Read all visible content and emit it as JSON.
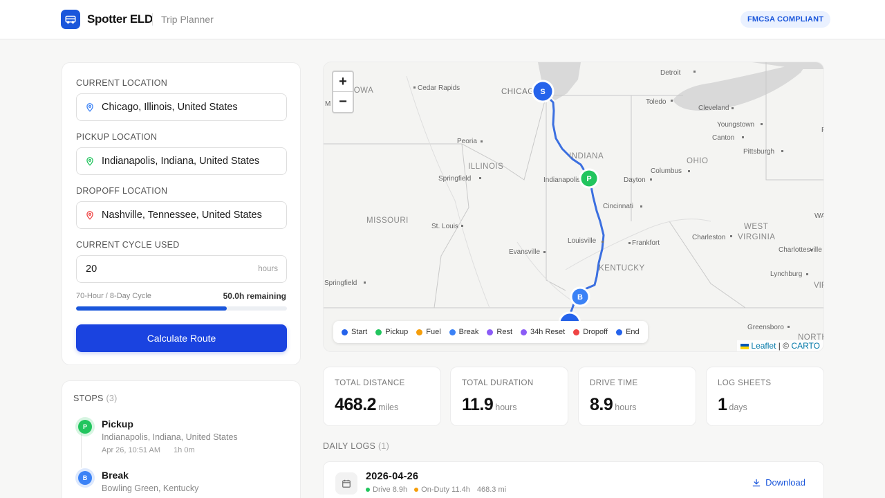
{
  "header": {
    "brand": "Spotter ELD",
    "subtitle": "Trip Planner",
    "badge": "FMCSA COMPLIANT"
  },
  "form": {
    "current_location": {
      "label": "CURRENT LOCATION",
      "value": "Chicago, Illinois, United States"
    },
    "pickup_location": {
      "label": "PICKUP LOCATION",
      "value": "Indianapolis, Indiana, United States"
    },
    "dropoff_location": {
      "label": "DROPOFF LOCATION",
      "value": "Nashville, Tennessee, United States"
    },
    "cycle_used": {
      "label": "CURRENT CYCLE USED",
      "value": "20",
      "unit": "hours"
    },
    "cycle_caption": "70-Hour / 8-Day Cycle",
    "cycle_remaining": "50.0h remaining",
    "cycle_fraction": 0.714,
    "calculate_label": "Calculate Route"
  },
  "stops": {
    "title": "STOPS",
    "count": "(3)",
    "items": [
      {
        "letter": "P",
        "name": "Pickup",
        "address": "Indianapolis, Indiana, United States",
        "time": "Apr 26, 10:51 AM",
        "duration": "1h 0m",
        "color": "#22c55e"
      },
      {
        "letter": "B",
        "name": "Break",
        "address": "Bowling Green, Kentucky",
        "color": "#3b82f6"
      }
    ]
  },
  "map": {
    "zoom_in": "+",
    "zoom_out": "−",
    "labels": {
      "iowa": "IOWA",
      "cedar_rapids": "Cedar Rapids",
      "chicago": "CHICAGO",
      "detroit": "Detroit",
      "toledo": "Toledo",
      "cleveland": "Cleveland",
      "youngstown": "Youngstown",
      "canton": "Canton",
      "pittsburgh": "Pittsburgh",
      "indiana": "INDIANA",
      "ohio": "OHIO",
      "peoria": "Peoria",
      "illinois": "ILLINOIS",
      "springfield_il": "Springfield",
      "indianapolis": "Indianapolis",
      "dayton": "Dayton",
      "columbus": "Columbus",
      "cincinnati": "Cincinnati",
      "missouri": "MISSOURI",
      "st_louis": "St. Louis",
      "louisville": "Louisville",
      "frankfort": "Frankfort",
      "west_virginia_1": "WEST",
      "west_virginia_2": "VIRGINIA",
      "charleston": "Charleston",
      "charlottesville": "Charlottesville",
      "evansville": "Evansville",
      "kentucky": "KENTUCKY",
      "lynchburg": "Lynchburg",
      "springfield_mo": "Springfield",
      "greensboro": "Greensboro",
      "north": "NORTH",
      "edge_m": "M",
      "edge_p": "P",
      "edge_wa": "WA",
      "edge_vir": "VIR"
    },
    "markers": {
      "start": "S",
      "pickup": "P",
      "break": "B"
    },
    "legend": [
      {
        "label": "Start",
        "color": "#2563eb"
      },
      {
        "label": "Pickup",
        "color": "#22c55e"
      },
      {
        "label": "Fuel",
        "color": "#f59e0b"
      },
      {
        "label": "Break",
        "color": "#3b82f6"
      },
      {
        "label": "Rest",
        "color": "#8b5cf6"
      },
      {
        "label": "34h Reset",
        "color": "#8b5cf6"
      },
      {
        "label": "Dropoff",
        "color": "#ef4444"
      },
      {
        "label": "End",
        "color": "#2563eb"
      }
    ],
    "attribution": {
      "leaflet": "Leaflet",
      "separator": "| ©",
      "carto": "CARTO"
    }
  },
  "stats": [
    {
      "label": "TOTAL DISTANCE",
      "value": "468.2",
      "unit": "miles"
    },
    {
      "label": "TOTAL DURATION",
      "value": "11.9",
      "unit": "hours"
    },
    {
      "label": "DRIVE TIME",
      "value": "8.9",
      "unit": "hours"
    },
    {
      "label": "LOG SHEETS",
      "value": "1",
      "unit": "days"
    }
  ],
  "daily_logs": {
    "title": "DAILY LOGS",
    "count": "(1)",
    "items": [
      {
        "date": "2026-04-26",
        "drive": "Drive 8.9h",
        "on_duty": "On-Duty 11.4h",
        "distance": "468.3 mi",
        "download_label": "Download"
      }
    ]
  },
  "colors": {
    "accent": "#1a56db",
    "button": "#1a43e0",
    "route": "#3b6fe0"
  }
}
